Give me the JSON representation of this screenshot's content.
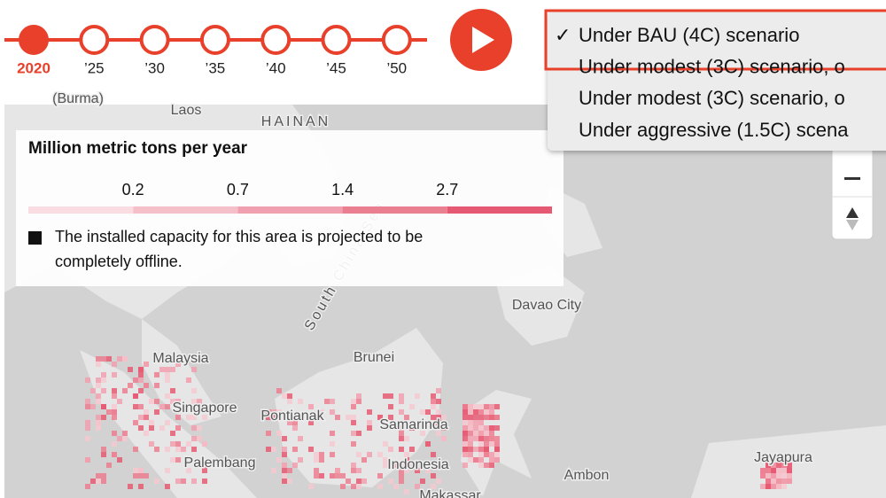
{
  "timeline": {
    "labels": [
      "2020",
      "’25",
      "’30",
      "’35",
      "’40",
      "’45",
      "’50"
    ],
    "active_index": 0,
    "color": "#e8402a"
  },
  "dropdown": {
    "check": "✓",
    "options": [
      "Under BAU (4C) scenario",
      "Under modest (3C) scenario, o",
      "Under modest (3C) scenario, o",
      "Under aggressive (1.5C) scena"
    ],
    "selected_index": 0
  },
  "legend": {
    "title": "Million metric tons per year",
    "ticks": [
      0.2,
      0.7,
      1.4,
      2.7
    ],
    "colors": [
      "#f9dde2",
      "#f5c0c9",
      "#f0a0ae",
      "#eb7f92",
      "#e55a72"
    ],
    "note": [
      "The installed capacity for this area is projected to be",
      "completely offline."
    ]
  },
  "map_labels": [
    "(Burma)",
    "Laos",
    "HAINAN",
    "South China Sea",
    "Davao City",
    "Malaysia",
    "Brunei",
    "Singapore",
    "Pontianak",
    "Samarinda",
    "Palembang",
    "Indonesia",
    "Ambon",
    "Jayapura",
    "Makassar"
  ]
}
